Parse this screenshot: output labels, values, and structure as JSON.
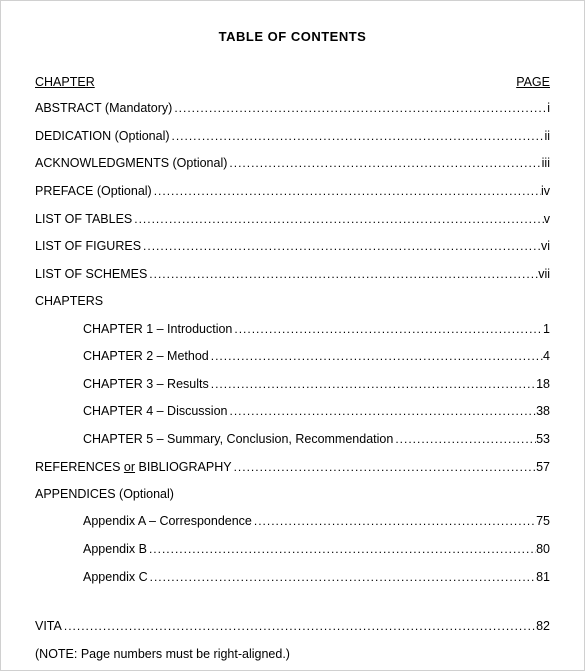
{
  "title": "TABLE OF CONTENTS",
  "header_left": "CHAPTER",
  "header_right": "PAGE",
  "entries": [
    {
      "label": "ABSTRACT (Mandatory)",
      "page": "i",
      "indent": false,
      "dots": true
    },
    {
      "label": "DEDICATION (Optional)",
      "page": "ii",
      "indent": false,
      "dots": true
    },
    {
      "label": "ACKNOWLEDGMENTS (Optional)",
      "page": "iii",
      "indent": false,
      "dots": true
    },
    {
      "label": "PREFACE (Optional)",
      "page": "iv",
      "indent": false,
      "dots": true
    },
    {
      "label": "LIST OF TABLES",
      "page": "v",
      "indent": false,
      "dots": true
    },
    {
      "label": "LIST OF FIGURES",
      "page": "vi",
      "indent": false,
      "dots": true
    },
    {
      "label": "LIST OF SCHEMES",
      "page": "vii",
      "indent": false,
      "dots": true
    },
    {
      "label": "CHAPTERS",
      "page": "",
      "indent": false,
      "dots": false
    },
    {
      "label": "CHAPTER 1 – Introduction",
      "page": "1",
      "indent": true,
      "dots": true
    },
    {
      "label": "CHAPTER 2 – Method",
      "page": "4",
      "indent": true,
      "dots": true
    },
    {
      "label": "CHAPTER 3 – Results",
      "page": "18",
      "indent": true,
      "dots": true
    },
    {
      "label": "CHAPTER 4 – Discussion",
      "page": "38",
      "indent": true,
      "dots": true
    },
    {
      "label": "CHAPTER 5 – Summary, Conclusion, Recommendation",
      "page": "53",
      "indent": true,
      "dots": true
    },
    {
      "label_html": "REFERENCES <span class=\"u\">or</span> BIBLIOGRAPHY",
      "page": "57",
      "indent": false,
      "dots": true
    },
    {
      "label": "APPENDICES (Optional)",
      "page": "",
      "indent": false,
      "dots": false
    },
    {
      "label": "Appendix A – Correspondence",
      "page": "75",
      "indent": true,
      "dots": true
    },
    {
      "label": "Appendix B",
      "page": "80",
      "indent": true,
      "dots": true
    },
    {
      "label": "Appendix C",
      "page": "81",
      "indent": true,
      "dots": true
    }
  ],
  "vita": {
    "label": "VITA",
    "page": "82"
  },
  "note": "(NOTE:  Page numbers must be right-aligned.)",
  "dot_char": "."
}
